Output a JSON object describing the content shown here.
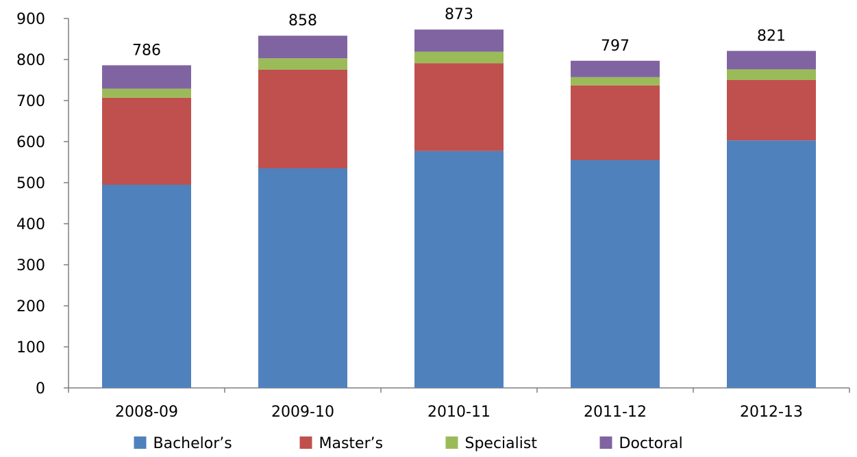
{
  "chart_data": {
    "type": "bar",
    "stacked": true,
    "title": "",
    "xlabel": "",
    "ylabel": "",
    "ylim": [
      0,
      900
    ],
    "yticks": [
      "0",
      "100",
      "200",
      "300",
      "400",
      "500",
      "600",
      "700",
      "800",
      "900"
    ],
    "grid": false,
    "legend_position": "bottom",
    "categories": [
      "2008-09",
      "2009-10",
      "2010-11",
      "2011-12",
      "2012-13"
    ],
    "totals": [
      "786",
      "858",
      "873",
      "797",
      "821"
    ],
    "series": [
      {
        "name": "Bachelor’s",
        "color": "#4F81BD",
        "values": [
          495,
          535,
          577,
          555,
          603
        ]
      },
      {
        "name": "Master’s",
        "color": "#C0504D",
        "values": [
          212,
          240,
          214,
          182,
          147
        ]
      },
      {
        "name": "Specialist",
        "color": "#9BBB59",
        "values": [
          22,
          28,
          28,
          20,
          26
        ]
      },
      {
        "name": "Doctoral",
        "color": "#8064A2",
        "values": [
          57,
          55,
          54,
          40,
          45
        ]
      }
    ]
  }
}
